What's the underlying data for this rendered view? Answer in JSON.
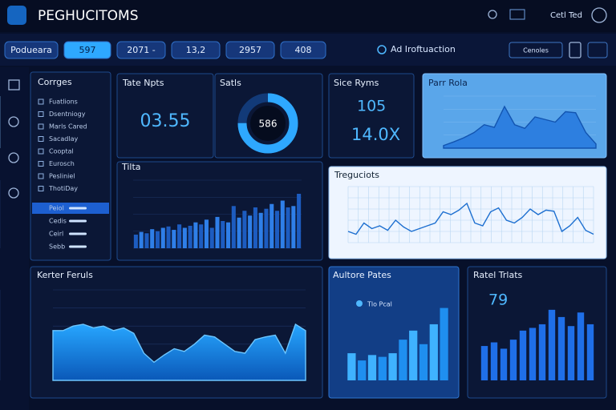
{
  "header": {
    "title": "PEGHUCITOMS",
    "user": "Cetl Ted"
  },
  "toolbar": {
    "tabs": [
      "Podueara",
      "597",
      "2071 -",
      "13,2",
      "2957",
      "408"
    ],
    "active_tab": 1,
    "radio": "Ad Iroftuaction",
    "button": "Cenoles"
  },
  "categories": {
    "title": "Corrges",
    "items": [
      "Fuatlions",
      "Dsentniogy",
      "Marls Cared",
      "Sacadlay",
      "Cooptal",
      "Eurosch",
      "Pesliniel",
      "ThotiDay"
    ],
    "sub_items": [
      "Peiol",
      "Cedis",
      "Ceirl",
      "Sebb"
    ],
    "active_sub_item": 0
  },
  "tate": {
    "title": "Tate Npts",
    "value": "03.55"
  },
  "sales": {
    "title": "Satls",
    "value": "586",
    "percent": 75
  },
  "sice": {
    "title": "Sice Ryms",
    "values": [
      "105",
      "14.0X"
    ]
  },
  "parr": {
    "title": "Parr Rola",
    "values": [
      5,
      12,
      20,
      30,
      45,
      40,
      80,
      45,
      38,
      60,
      55,
      50,
      70,
      68,
      30,
      8
    ]
  },
  "tilta": {
    "title": "Tilta",
    "values": [
      20,
      24,
      22,
      28,
      25,
      30,
      32,
      27,
      35,
      30,
      33,
      38,
      35,
      42,
      30,
      46,
      40,
      38,
      62,
      45,
      55,
      48,
      60,
      52,
      58,
      65,
      55,
      70,
      60,
      62,
      80
    ]
  },
  "treg": {
    "title": "Treguciots",
    "values": [
      20,
      15,
      35,
      25,
      30,
      22,
      40,
      28,
      20,
      25,
      30,
      35,
      55,
      50,
      58,
      70,
      35,
      30,
      55,
      62,
      40,
      35,
      45,
      60,
      50,
      58,
      56,
      20,
      30,
      45,
      22,
      15
    ]
  },
  "kerter": {
    "title": "Kerter Feruls",
    "values": [
      55,
      55,
      60,
      62,
      58,
      60,
      55,
      58,
      52,
      30,
      20,
      28,
      35,
      32,
      40,
      50,
      48,
      40,
      32,
      30,
      45,
      48,
      50,
      30,
      62,
      55
    ]
  },
  "aultore": {
    "title": "Aultore Pates",
    "legend": "Tlo Pcal",
    "values": [
      30,
      22,
      28,
      26,
      30,
      45,
      55,
      40,
      62,
      80
    ]
  },
  "ratel": {
    "title": "Ratel Trlats",
    "value": "79",
    "values": [
      38,
      42,
      35,
      45,
      55,
      58,
      62,
      78,
      70,
      60,
      75,
      62
    ]
  }
}
